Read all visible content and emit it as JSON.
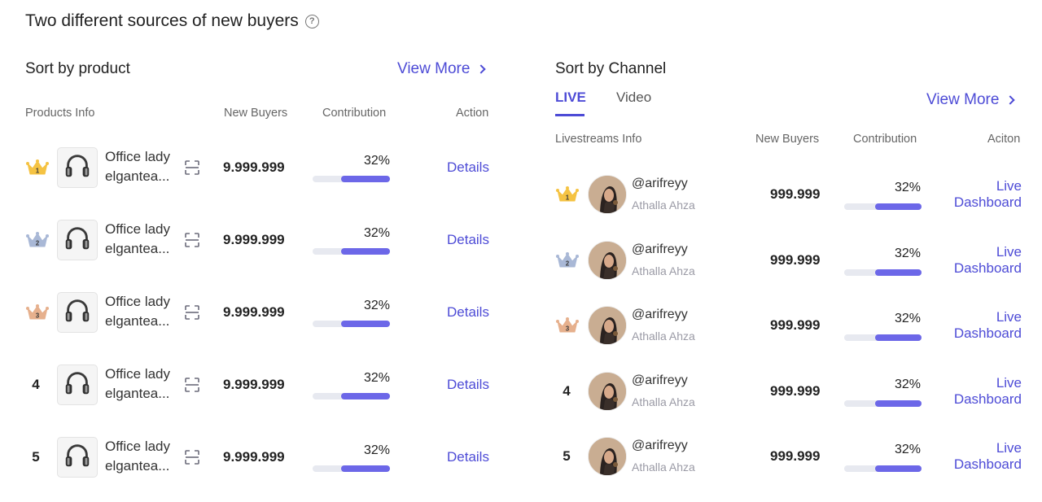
{
  "title": "Two different sources of new buyers",
  "help_glyph": "?",
  "product": {
    "section_title": "Sort by product",
    "view_more": "View More",
    "headers": {
      "info": "Products Info",
      "new_buyers": "New Buyers",
      "contribution": "Contribution",
      "action": "Action"
    },
    "rows": [
      {
        "rank": "1",
        "name_line1": "Office lady",
        "name_line2": "elgantea...",
        "buyers": "9.999.999",
        "pct": "32%",
        "fill": 0.63,
        "action": "Details"
      },
      {
        "rank": "2",
        "name_line1": "Office lady",
        "name_line2": "elgantea...",
        "buyers": "9.999.999",
        "pct": "32%",
        "fill": 0.63,
        "action": "Details"
      },
      {
        "rank": "3",
        "name_line1": "Office lady",
        "name_line2": "elgantea...",
        "buyers": "9.999.999",
        "pct": "32%",
        "fill": 0.63,
        "action": "Details"
      },
      {
        "rank": "4",
        "name_line1": "Office lady",
        "name_line2": "elgantea...",
        "buyers": "9.999.999",
        "pct": "32%",
        "fill": 0.63,
        "action": "Details"
      },
      {
        "rank": "5",
        "name_line1": "Office lady",
        "name_line2": "elgantea...",
        "buyers": "9.999.999",
        "pct": "32%",
        "fill": 0.63,
        "action": "Details"
      }
    ]
  },
  "channel": {
    "section_title": "Sort by Channel",
    "tabs": [
      {
        "label": "LIVE"
      },
      {
        "label": "Video"
      }
    ],
    "view_more": "View More",
    "headers": {
      "info": "Livestreams Info",
      "new_buyers": "New Buyers",
      "contribution": "Contribution",
      "action": "Aciton"
    },
    "rows": [
      {
        "rank": "1",
        "handle": "@arifreyy",
        "name": "Athalla Ahza",
        "buyers": "999.999",
        "pct": "32%",
        "fill": 0.6,
        "action_line1": "Live",
        "action_line2": "Dashboard"
      },
      {
        "rank": "2",
        "handle": "@arifreyy",
        "name": "Athalla Ahza",
        "buyers": "999.999",
        "pct": "32%",
        "fill": 0.6,
        "action_line1": "Live",
        "action_line2": "Dashboard"
      },
      {
        "rank": "3",
        "handle": "@arifreyy",
        "name": "Athalla Ahza",
        "buyers": "999.999",
        "pct": "32%",
        "fill": 0.6,
        "action_line1": "Live",
        "action_line2": "Dashboard"
      },
      {
        "rank": "4",
        "handle": "@arifreyy",
        "name": "Athalla Ahza",
        "buyers": "999.999",
        "pct": "32%",
        "fill": 0.6,
        "action_line1": "Live",
        "action_line2": "Dashboard"
      },
      {
        "rank": "5",
        "handle": "@arifreyy",
        "name": "Athalla Ahza",
        "buyers": "999.999",
        "pct": "32%",
        "fill": 0.6,
        "action_line1": "Live",
        "action_line2": "Dashboard"
      }
    ]
  },
  "colors": {
    "accent": "#4d4bd6",
    "bar": "#6c67e8",
    "track": "#e7e9f0",
    "gold": "#f5c343",
    "silver": "#a9b8d6",
    "bronze": "#e6b08d"
  }
}
